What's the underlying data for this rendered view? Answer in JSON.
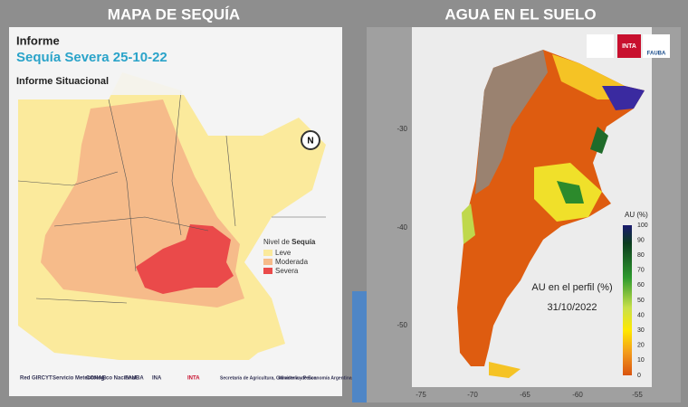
{
  "left_panel": {
    "header": "MAPA DE SEQUÍA",
    "title": "Informe",
    "subtitle": "Sequía Severa 25-10-22",
    "caption": "Informe Situacional",
    "legend": {
      "title_prefix": "Nivel de",
      "title_bold": "Sequía",
      "items": [
        "Leve",
        "Moderada",
        "Severa"
      ]
    },
    "compass": "N",
    "logos": [
      "Red GIRCYT",
      "Servicio Meteorológico Nacional",
      "CONAE",
      "FAUBA",
      "INA",
      "INTA",
      "Secretaría de Agricultura, Ganadería y Pesca",
      "Ministerio de Economía Argentina"
    ]
  },
  "right_panel": {
    "header": "AGUA EN EL SUELO",
    "annotation": "AU en el perfil (%)",
    "date": "31/10/2022",
    "colorbar": {
      "title": "AU (%)",
      "ticks": [
        "100",
        "90",
        "80",
        "70",
        "60",
        "50",
        "40",
        "30",
        "20",
        "10",
        "0"
      ]
    },
    "x_ticks": [
      "-75",
      "-70",
      "-65",
      "-60",
      "-55"
    ],
    "y_ticks": [
      "-30",
      "-40",
      "-50"
    ],
    "logos": [
      "INTA",
      "FAUBA"
    ]
  }
}
